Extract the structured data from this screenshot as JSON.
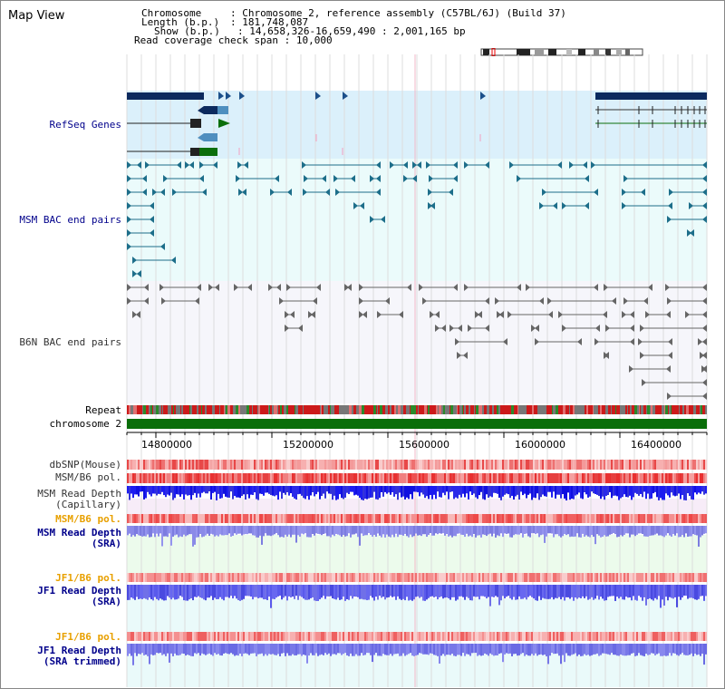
{
  "window": {
    "title": "Map View"
  },
  "info": {
    "chromosome_key": "Chromosome",
    "chromosome_val": "Chromosome 2, reference assembly (C57BL/6J) (Build 37)",
    "length_key": "Length (b.p.)",
    "length_val": "181,748,087",
    "show_key": "Show (b.p.)",
    "show_val": "14,658,326-16,659,490 : 2,001,165 bp",
    "span_key": "Read coverage check span",
    "span_val": "10,000"
  },
  "tracks": {
    "refseq": "RefSeq Genes",
    "msm_bac": "MSM BAC end pairs",
    "b6n_bac": "B6N BAC end pairs",
    "repeat": "Repeat",
    "chromosome": "chromosome 2",
    "dbsnp": "dbSNP(Mouse)",
    "msm_pol_1": "MSM/B6 pol.",
    "msm_depth_cap_1": "MSM Read Depth",
    "msm_depth_cap_2": "(Capillary)",
    "msm_pol_2": "MSM/B6 pol.",
    "msm_depth_sra_1": "MSM Read Depth",
    "msm_depth_sra_2": "(SRA)",
    "jf1_pol_1": "JF1/B6 pol.",
    "jf1_depth_sra_1": "JF1 Read Depth",
    "jf1_depth_sra_2": "(SRA)",
    "jf1_pol_2": "JF1/B6 pol.",
    "jf1_depth_trim_1": "JF1 Read Depth",
    "jf1_depth_trim_2": "(SRA trimmed)"
  },
  "axis": {
    "ticks": [
      "14800000",
      "15200000",
      "15600000",
      "16000000",
      "16400000"
    ]
  },
  "colors": {
    "refseq_bg": "#dbf0fb",
    "bac_bg": "#ebfbfb",
    "b6n_bg": "#f6f6fb",
    "label_navy": "#00008b",
    "label_orange": "#e8a000",
    "gene_navy": "#0c2a5e",
    "gene_green": "#0b6e0b",
    "bac_teal": "#1d6e8a",
    "bac_gray": "#666666",
    "chrom_green": "#0a6e0a"
  }
}
